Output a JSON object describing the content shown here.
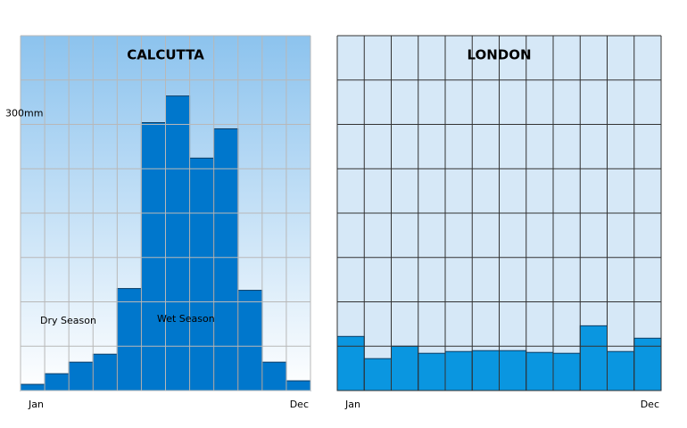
{
  "chart_data": [
    {
      "type": "bar",
      "title": "CALCUTTA",
      "categories": [
        "Jan",
        null,
        null,
        null,
        null,
        null,
        null,
        null,
        null,
        null,
        null,
        "Dec"
      ],
      "values": [
        7,
        19,
        32,
        41,
        115,
        302,
        332,
        262,
        295,
        113,
        32,
        11
      ],
      "color": "#0077cc",
      "ylim": [
        0,
        400
      ],
      "yticks": [
        {
          "value": 300,
          "label": "300mm"
        }
      ],
      "grid_lines": [
        0,
        50,
        100,
        150,
        200,
        250,
        300,
        350,
        400
      ],
      "annotations": [
        "Dry Season",
        "Wet Season"
      ]
    },
    {
      "type": "bar",
      "title": "LONDON",
      "categories": [
        "Jan",
        null,
        null,
        null,
        null,
        null,
        null,
        null,
        null,
        null,
        null,
        "Dec"
      ],
      "values": [
        61,
        36,
        50,
        42,
        44,
        45,
        45,
        43,
        42,
        73,
        44,
        59
      ],
      "color": "#0a96e0",
      "ylim": [
        0,
        400
      ],
      "yticks": [],
      "grid_lines": [
        0,
        50,
        100,
        150,
        200,
        250,
        300,
        350,
        400
      ]
    }
  ]
}
